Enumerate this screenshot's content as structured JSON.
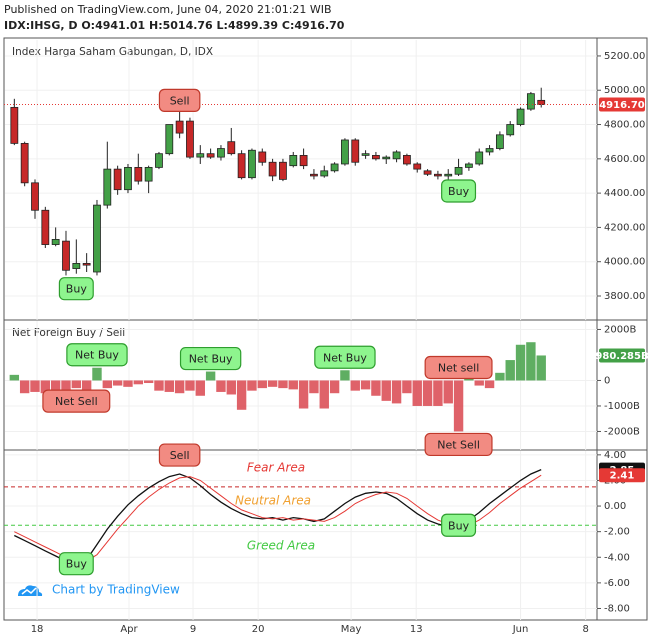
{
  "header": {
    "published": "Published on TradingView.com, June 04, 2020 21:01:21 WIB",
    "ohlc": "IDX:IHSG, D O:4941.01 H:5014.76 L:4899.39 C:4916.70"
  },
  "chart_data": [
    {
      "type": "candlestick",
      "title": "Index Harga Saham Gabungan, D, IDX",
      "open": [
        4900,
        4690,
        4460,
        4300,
        4100,
        4120,
        3960,
        3990,
        3940,
        4330,
        4540,
        4420,
        4550,
        4470,
        4550,
        4630,
        4820,
        4820,
        4610,
        4630,
        4610,
        4700,
        4630,
        4490,
        4640,
        4580,
        4580,
        4560,
        4620,
        4510,
        4500,
        4530,
        4570,
        4710,
        4620,
        4620,
        4600,
        4600,
        4620,
        4570,
        4530,
        4510,
        4500,
        4510,
        4550,
        4570,
        4640,
        4660,
        4740,
        4800,
        4890,
        4941.01
      ],
      "high": [
        4950,
        4700,
        4480,
        4320,
        4200,
        4180,
        4130,
        4050,
        4360,
        4700,
        4560,
        4570,
        4630,
        4560,
        4640,
        4800,
        4970,
        4840,
        4680,
        4660,
        4680,
        4780,
        4650,
        4660,
        4660,
        4600,
        4600,
        4640,
        4660,
        4540,
        4560,
        4580,
        4720,
        4720,
        4650,
        4640,
        4620,
        4650,
        4630,
        4580,
        4540,
        4530,
        4540,
        4600,
        4580,
        4660,
        4680,
        4760,
        4820,
        4900,
        4990,
        5014.76
      ],
      "low": [
        4680,
        4440,
        4250,
        4080,
        4090,
        3920,
        3930,
        3940,
        3920,
        4310,
        4390,
        4400,
        4450,
        4400,
        4540,
        4620,
        4720,
        4600,
        4570,
        4600,
        4590,
        4620,
        4480,
        4480,
        4560,
        4470,
        4470,
        4550,
        4540,
        4480,
        4490,
        4520,
        4560,
        4560,
        4600,
        4590,
        4570,
        4580,
        4560,
        4520,
        4500,
        4480,
        4460,
        4500,
        4530,
        4560,
        4620,
        4650,
        4730,
        4790,
        4880,
        4899.39
      ],
      "close": [
        4690,
        4460,
        4300,
        4100,
        4130,
        3950,
        3990,
        3980,
        4330,
        4540,
        4420,
        4550,
        4470,
        4550,
        4630,
        4800,
        4750,
        4610,
        4630,
        4610,
        4660,
        4630,
        4490,
        4650,
        4580,
        4500,
        4480,
        4620,
        4560,
        4500,
        4530,
        4570,
        4710,
        4580,
        4630,
        4600,
        4610,
        4640,
        4570,
        4540,
        4510,
        4500,
        4510,
        4550,
        4570,
        4640,
        4660,
        4740,
        4800,
        4890,
        4980,
        4916.7
      ],
      "last_close_label": "4916.70",
      "up_color": "#43a047",
      "down_color": "#c62828",
      "price_line_color": "#e53935",
      "ylim": [
        3660,
        5293
      ],
      "yticks": [
        {
          "value": 3800,
          "label": "3800.00"
        },
        {
          "value": 4000,
          "label": "4000.00"
        },
        {
          "value": 4200,
          "label": "4200.00"
        },
        {
          "value": 4400,
          "label": "4400.00"
        },
        {
          "value": 4600,
          "label": "4600.00"
        },
        {
          "value": 4800,
          "label": "4800.00"
        },
        {
          "value": 5000,
          "label": "5000.00"
        },
        {
          "value": 5200,
          "label": "5200.00"
        }
      ],
      "annotations": [
        {
          "text": "Sell",
          "x": 16,
          "position": "above",
          "color": "#f28b82"
        },
        {
          "text": "Buy",
          "x": 6,
          "position": "below",
          "color": "#8ef58e"
        },
        {
          "text": "Buy",
          "x": 43,
          "position": "below",
          "color": "#8ef58e"
        }
      ]
    },
    {
      "type": "bar",
      "title": "Net Foreign Buy / Sell",
      "values": [
        220,
        -500,
        -450,
        -500,
        -600,
        -700,
        -300,
        -400,
        500,
        -300,
        -200,
        -250,
        -150,
        -100,
        -400,
        -450,
        -500,
        -400,
        -600,
        350,
        -450,
        -550,
        -1150,
        -400,
        -300,
        -250,
        -300,
        -350,
        -1100,
        -500,
        -1100,
        -500,
        400,
        -400,
        -350,
        -600,
        -800,
        -900,
        -500,
        -1000,
        -1000,
        -1000,
        -900,
        -2000,
        200,
        -200,
        -300,
        300,
        800,
        1400,
        1500,
        980.285
      ],
      "last_value_label": "980.285B",
      "up_color": "#43a047",
      "down_color": "#d9474f",
      "ylim": [
        -2727,
        2332
      ],
      "yticks": [
        {
          "value": -2000,
          "label": "-2000B"
        },
        {
          "value": -1000,
          "label": "-1000B"
        },
        0,
        {
          "value": 2000,
          "label": "2000B"
        }
      ],
      "annotations": [
        {
          "text": "Net Buy",
          "x": 8,
          "position": "above",
          "color": "#8ef58e"
        },
        {
          "text": "Net Buy",
          "x": 19,
          "position": "above",
          "color": "#8ef58e"
        },
        {
          "text": "Net Buy",
          "x": 32,
          "position": "above",
          "color": "#8ef58e"
        },
        {
          "text": "Net Sell",
          "x": 6,
          "position": "below",
          "color": "#f28b82"
        },
        {
          "text": "Net sell",
          "x": 43,
          "position": "above",
          "color": "#f28b82"
        },
        {
          "text": "Net Sell",
          "x": 43,
          "position": "below",
          "color": "#f28b82"
        }
      ]
    },
    {
      "type": "line",
      "series": [
        {
          "color": "#111111",
          "values": [
            -2.3,
            -2.7,
            -3.1,
            -3.5,
            -3.9,
            -4.3,
            -4.5,
            -4.2,
            -3.0,
            -1.8,
            -0.8,
            0.1,
            0.8,
            1.4,
            1.9,
            2.3,
            2.5,
            2.2,
            1.6,
            0.9,
            0.3,
            -0.2,
            -0.6,
            -0.9,
            -1.0,
            -0.9,
            -1.1,
            -0.9,
            -1.0,
            -1.2,
            -1.0,
            -0.4,
            0.2,
            0.7,
            1.0,
            1.1,
            1.0,
            0.6,
            0.0,
            -0.6,
            -1.1,
            -1.4,
            -1.6,
            -1.5,
            -1.1,
            -0.5,
            0.2,
            0.8,
            1.4,
            2.0,
            2.5,
            2.85
          ]
        },
        {
          "color": "#e53935",
          "values": [
            -2.0,
            -2.4,
            -2.8,
            -3.2,
            -3.6,
            -4.0,
            -4.3,
            -4.3,
            -3.8,
            -2.8,
            -1.8,
            -0.9,
            0.0,
            0.7,
            1.3,
            1.8,
            2.2,
            2.3,
            2.0,
            1.4,
            0.8,
            0.2,
            -0.3,
            -0.6,
            -0.9,
            -1.0,
            -0.9,
            -1.1,
            -1.0,
            -1.1,
            -1.2,
            -0.9,
            -0.4,
            0.2,
            0.6,
            0.9,
            1.1,
            1.0,
            0.6,
            0.0,
            -0.6,
            -1.1,
            -1.4,
            -1.6,
            -1.5,
            -1.1,
            -0.5,
            0.2,
            0.8,
            1.4,
            1.9,
            2.41
          ]
        }
      ],
      "hlines": [
        {
          "value": 1.5,
          "color": "#c62828"
        },
        {
          "value": -1.5,
          "color": "#43c943"
        }
      ],
      "area_labels": [
        {
          "text": "Fear Area",
          "color": "#e53935"
        },
        {
          "text": "Neutral Area",
          "color": "#f0a030"
        },
        {
          "text": "Greed Area",
          "color": "#43c943"
        }
      ],
      "ylim": [
        -8.9,
        4.3
      ],
      "yticks": [
        {
          "value": -8,
          "label": "-8.00"
        },
        {
          "value": -6,
          "label": "-6.00"
        },
        {
          "value": -4,
          "label": "-4.00"
        },
        {
          "value": -2,
          "label": "-2.00"
        },
        {
          "value": 0,
          "label": "0.00"
        },
        {
          "value": 2,
          "label": "2.00"
        },
        {
          "value": 4,
          "label": "4.00"
        }
      ],
      "xlim": [
        -1,
        56.4
      ],
      "xticks": [
        {
          "value": 2.2,
          "label": "18"
        },
        {
          "value": 11.1,
          "label": "Apr"
        },
        {
          "value": 17.3,
          "label": "9"
        },
        {
          "value": 23.6,
          "label": "20"
        },
        {
          "value": 32.6,
          "label": "May"
        },
        {
          "value": 38.9,
          "label": "13"
        },
        {
          "value": 49,
          "label": "Jun"
        },
        {
          "value": 55.3,
          "label": "8"
        }
      ],
      "annotations": [
        {
          "text": "Sell",
          "x": 16,
          "position": "above",
          "color": "#f28b82"
        },
        {
          "text": "Buy",
          "x": 6,
          "position": "center",
          "color": "#8ef58e"
        },
        {
          "text": "Buy",
          "x": 43,
          "position": "center",
          "color": "#8ef58e"
        }
      ]
    }
  ],
  "footer": {
    "brand": "Chart by TradingView"
  }
}
